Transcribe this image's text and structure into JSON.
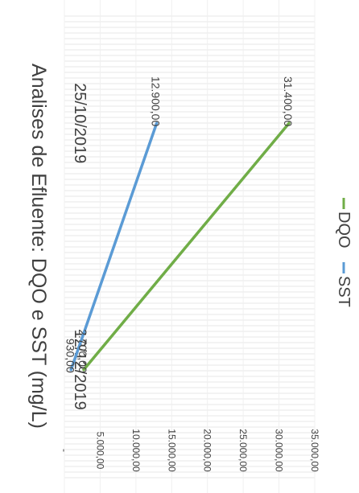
{
  "chart_data": {
    "type": "line",
    "title": "Analises de Efluente: DQO e SST (mg/L)",
    "categories": [
      "25/10/2019",
      "12/12/2019"
    ],
    "y_tick_labels": [
      "-",
      "5.000,00",
      "10.000,00",
      "15.000,00",
      "20.000,00",
      "25.000,00",
      "30.000,00",
      "35.000,00"
    ],
    "ylim": [
      0,
      35000
    ],
    "y_ticks": [
      0,
      5000,
      10000,
      15000,
      20000,
      25000,
      30000,
      35000
    ],
    "grid": true,
    "legend_position": "bottom",
    "orientation": "rotated-90-clockwise",
    "series": [
      {
        "name": "DQO",
        "color": "#70ad47",
        "values": [
          31400,
          2700
        ],
        "labels": [
          "31.400,00",
          "2.700,00"
        ]
      },
      {
        "name": "SST",
        "color": "#5b9bd5",
        "values": [
          12900,
          930
        ],
        "labels": [
          "12.900,00",
          "930,00"
        ]
      }
    ]
  }
}
